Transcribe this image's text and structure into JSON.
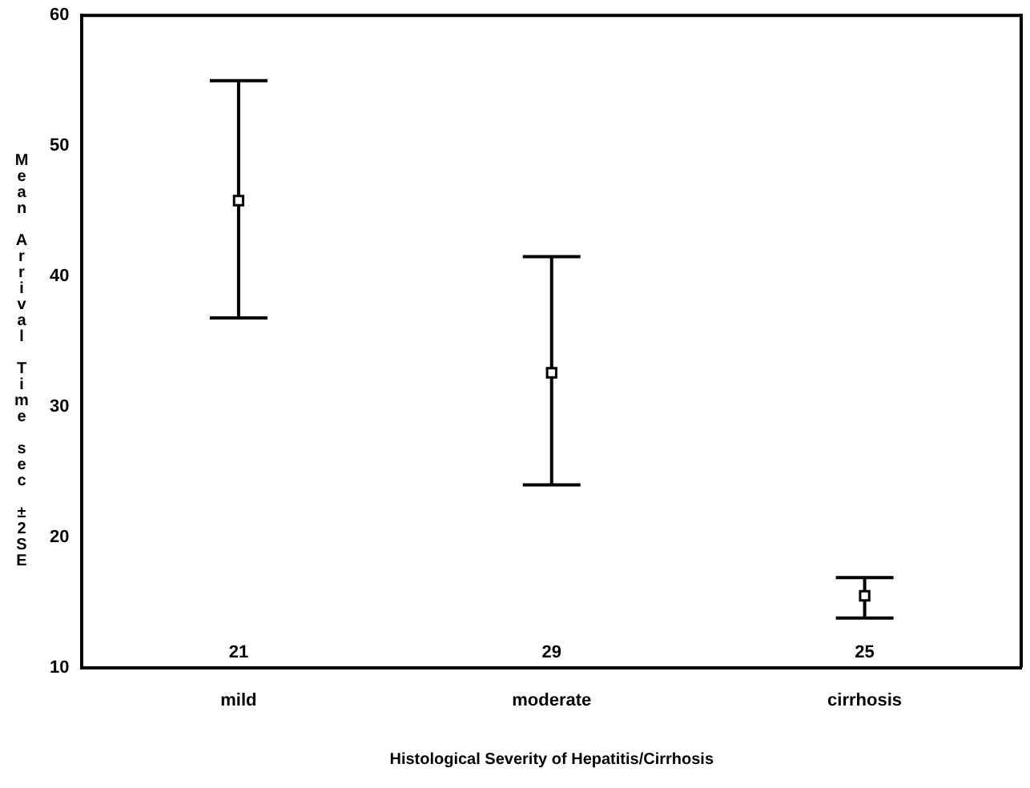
{
  "chart_data": {
    "type": "scatter",
    "xlabel": "Histological Severity of Hepatitis/Cirrhosis",
    "ylabel": "Mean Arrival Time sec ±2SE",
    "categories": [
      "mild",
      "moderate",
      "cirrhosis"
    ],
    "series": [
      {
        "color": "#000000",
        "values": [
          45.8,
          32.6,
          15.5
        ],
        "errors": [
          [
            36.8,
            55.0
          ],
          [
            24.0,
            41.5
          ],
          [
            13.8,
            16.9
          ]
        ]
      }
    ],
    "annotations": [
      "21",
      "29",
      "25"
    ],
    "ylim": [
      10,
      60
    ],
    "yticks": [
      10,
      20,
      30,
      40,
      50,
      60
    ],
    "grid": false,
    "legend": false,
    "marker": "square"
  }
}
